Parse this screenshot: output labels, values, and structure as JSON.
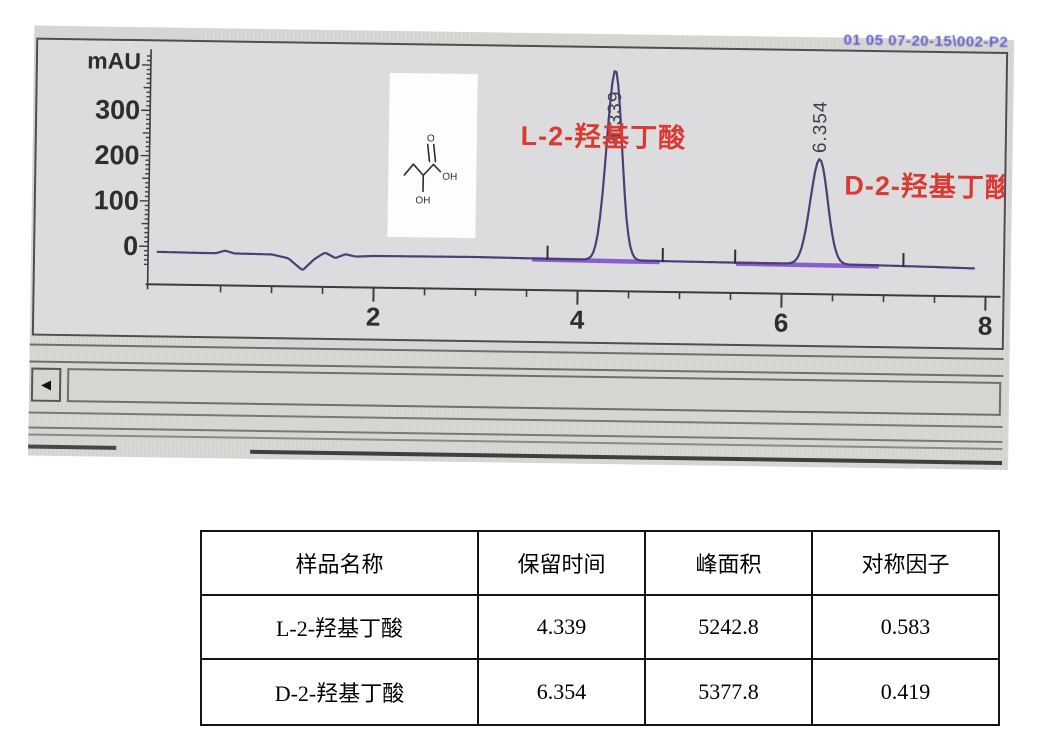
{
  "photo": {
    "top_right_text": "01 05 07-20-15\\002-P2",
    "scrollbar": {
      "left_arrow_icon": "◀"
    }
  },
  "chart_data": {
    "type": "line",
    "title": "",
    "xlabel": "",
    "ylabel": "mAU",
    "y_ticks": [
      0,
      100,
      200,
      300
    ],
    "x_ticks": [
      2,
      4,
      6,
      8
    ],
    "x_minor_step": 0.5,
    "xlim": [
      -0.13,
      7.9
    ],
    "ylim": [
      -90,
      440
    ],
    "grid": false,
    "legend": "none",
    "baseline_points": [
      [
        -0.13,
        -12
      ],
      [
        0.3,
        -13
      ],
      [
        0.45,
        -13
      ],
      [
        0.54,
        -7
      ],
      [
        0.63,
        -13
      ],
      [
        1.0,
        -14
      ],
      [
        1.16,
        -22
      ],
      [
        1.3,
        -48
      ],
      [
        1.42,
        -22
      ],
      [
        1.52,
        -8
      ],
      [
        1.62,
        -20
      ],
      [
        1.72,
        -11
      ],
      [
        1.82,
        -16
      ],
      [
        2.0,
        -14
      ],
      [
        3.0,
        -13
      ],
      [
        3.9,
        -15
      ],
      [
        4.9,
        -16
      ],
      [
        5.6,
        -17
      ],
      [
        6.9,
        -18
      ],
      [
        7.5,
        -20
      ],
      [
        7.9,
        -22
      ]
    ],
    "peaks": [
      {
        "name": "L-2-羟基丁酸",
        "retention_time": 4.339,
        "rt_label": "4.339",
        "gauss_height_mau": 420,
        "gauss_sigma_min": 0.075,
        "peak_area": 5242.8,
        "symmetry_factor": 0.583
      },
      {
        "name": "D-2-羟基丁酸",
        "retention_time": 6.354,
        "rt_label": "6.354",
        "gauss_height_mau": 232,
        "gauss_sigma_min": 0.085,
        "peak_area": 5377.8,
        "symmetry_factor": 0.419
      }
    ],
    "peak_annotations": [
      {
        "text": "L-2-羟基丁酸",
        "x": 3.42,
        "y": 236
      },
      {
        "text": "D-2-羟基丁酸",
        "x": 6.6,
        "y": 137
      }
    ],
    "integration_marks": [
      3.7,
      4.83,
      5.54,
      7.19
    ],
    "bold_baseline_segments": [
      [
        3.55,
        4.8
      ],
      [
        5.55,
        6.95
      ]
    ],
    "colors": {
      "trace": "#4b3f76",
      "baseline_bold": "#7f52cf",
      "annotation": "#d93a32",
      "axis": "#3c3c3c",
      "rt_text": "#3f3f46"
    }
  },
  "structure_inset": {
    "compound": "2-hydroxybutyric acid",
    "atoms": {
      "carbonyl_o": "O",
      "acid_oh": "OH",
      "alpha_oh": "OH"
    }
  },
  "table": {
    "headers": [
      "样品名称",
      "保留时间",
      "峰面积",
      "对称因子"
    ],
    "rows": [
      [
        "L-2-羟基丁酸",
        "4.339",
        "5242.8",
        "0.583"
      ],
      [
        "D-2-羟基丁酸",
        "6.354",
        "5377.8",
        "0.419"
      ]
    ]
  }
}
